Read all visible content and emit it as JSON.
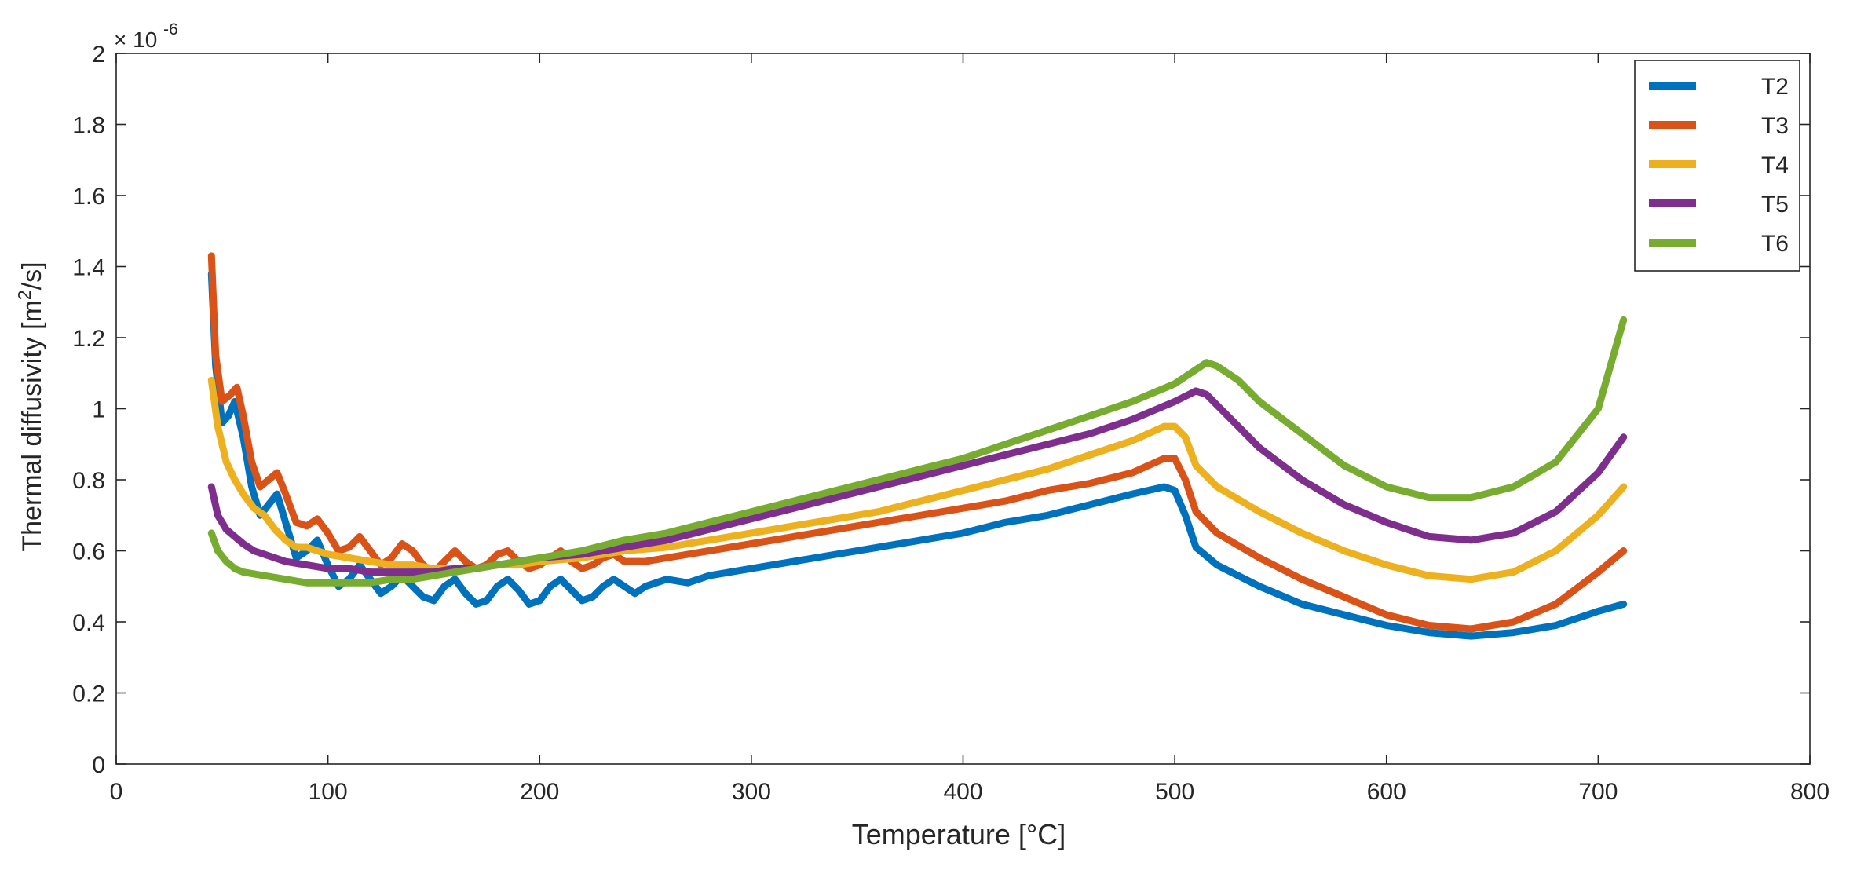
{
  "chart_data": {
    "type": "line",
    "title": "",
    "xlabel": "Temperature [°C]",
    "ylabel_main": "Thermal diffusivity [m",
    "ylabel_sup": "2",
    "ylabel_tail": "/s]",
    "y_exponent_base": "× 10",
    "y_exponent_power": "-6",
    "xlim": [
      0,
      800
    ],
    "ylim": [
      0,
      2.0
    ],
    "x_ticks": [
      0,
      100,
      200,
      300,
      400,
      500,
      600,
      700,
      800
    ],
    "x_tick_labels": [
      "0",
      "100",
      "200",
      "300",
      "400",
      "500",
      "600",
      "700",
      "800"
    ],
    "y_ticks": [
      0,
      0.2,
      0.4,
      0.6,
      0.8,
      1.0,
      1.2,
      1.4,
      1.6,
      1.8,
      2.0
    ],
    "y_tick_labels": [
      "0",
      "0.2",
      "0.4",
      "0.6",
      "0.8",
      "1",
      "1.2",
      "1.4",
      "1.6",
      "1.8",
      "2"
    ],
    "grid": false,
    "legend_position": "top-right",
    "series": [
      {
        "name": "T2",
        "color": "#0072BD",
        "points": [
          [
            45,
            1.38
          ],
          [
            47,
            1.12
          ],
          [
            50,
            0.96
          ],
          [
            53,
            0.98
          ],
          [
            56,
            1.02
          ],
          [
            60,
            0.92
          ],
          [
            64,
            0.78
          ],
          [
            68,
            0.7
          ],
          [
            72,
            0.73
          ],
          [
            76,
            0.76
          ],
          [
            80,
            0.68
          ],
          [
            85,
            0.58
          ],
          [
            90,
            0.6
          ],
          [
            95,
            0.63
          ],
          [
            100,
            0.56
          ],
          [
            105,
            0.5
          ],
          [
            110,
            0.52
          ],
          [
            115,
            0.56
          ],
          [
            120,
            0.52
          ],
          [
            125,
            0.48
          ],
          [
            130,
            0.5
          ],
          [
            135,
            0.53
          ],
          [
            140,
            0.5
          ],
          [
            145,
            0.47
          ],
          [
            150,
            0.46
          ],
          [
            155,
            0.5
          ],
          [
            160,
            0.52
          ],
          [
            165,
            0.48
          ],
          [
            170,
            0.45
          ],
          [
            175,
            0.46
          ],
          [
            180,
            0.5
          ],
          [
            185,
            0.52
          ],
          [
            190,
            0.49
          ],
          [
            195,
            0.45
          ],
          [
            200,
            0.46
          ],
          [
            205,
            0.5
          ],
          [
            210,
            0.52
          ],
          [
            215,
            0.49
          ],
          [
            220,
            0.46
          ],
          [
            225,
            0.47
          ],
          [
            230,
            0.5
          ],
          [
            235,
            0.52
          ],
          [
            240,
            0.5
          ],
          [
            245,
            0.48
          ],
          [
            250,
            0.5
          ],
          [
            260,
            0.52
          ],
          [
            270,
            0.51
          ],
          [
            280,
            0.53
          ],
          [
            300,
            0.55
          ],
          [
            320,
            0.57
          ],
          [
            340,
            0.59
          ],
          [
            360,
            0.61
          ],
          [
            380,
            0.63
          ],
          [
            400,
            0.65
          ],
          [
            420,
            0.68
          ],
          [
            440,
            0.7
          ],
          [
            460,
            0.73
          ],
          [
            480,
            0.76
          ],
          [
            495,
            0.78
          ],
          [
            500,
            0.77
          ],
          [
            505,
            0.7
          ],
          [
            510,
            0.61
          ],
          [
            520,
            0.56
          ],
          [
            540,
            0.5
          ],
          [
            560,
            0.45
          ],
          [
            580,
            0.42
          ],
          [
            600,
            0.39
          ],
          [
            620,
            0.37
          ],
          [
            640,
            0.36
          ],
          [
            660,
            0.37
          ],
          [
            680,
            0.39
          ],
          [
            700,
            0.43
          ],
          [
            712,
            0.45
          ]
        ]
      },
      {
        "name": "T3",
        "color": "#D95319",
        "points": [
          [
            45,
            1.43
          ],
          [
            47,
            1.15
          ],
          [
            50,
            1.02
          ],
          [
            54,
            1.04
          ],
          [
            57,
            1.06
          ],
          [
            60,
            0.98
          ],
          [
            64,
            0.85
          ],
          [
            68,
            0.78
          ],
          [
            72,
            0.8
          ],
          [
            76,
            0.82
          ],
          [
            80,
            0.76
          ],
          [
            85,
            0.68
          ],
          [
            90,
            0.67
          ],
          [
            95,
            0.69
          ],
          [
            100,
            0.65
          ],
          [
            105,
            0.6
          ],
          [
            110,
            0.61
          ],
          [
            115,
            0.64
          ],
          [
            120,
            0.6
          ],
          [
            125,
            0.56
          ],
          [
            130,
            0.58
          ],
          [
            135,
            0.62
          ],
          [
            140,
            0.6
          ],
          [
            145,
            0.56
          ],
          [
            150,
            0.54
          ],
          [
            155,
            0.57
          ],
          [
            160,
            0.6
          ],
          [
            165,
            0.57
          ],
          [
            170,
            0.55
          ],
          [
            175,
            0.56
          ],
          [
            180,
            0.59
          ],
          [
            185,
            0.6
          ],
          [
            190,
            0.57
          ],
          [
            195,
            0.55
          ],
          [
            200,
            0.56
          ],
          [
            205,
            0.58
          ],
          [
            210,
            0.6
          ],
          [
            215,
            0.57
          ],
          [
            220,
            0.55
          ],
          [
            225,
            0.56
          ],
          [
            230,
            0.58
          ],
          [
            235,
            0.59
          ],
          [
            240,
            0.57
          ],
          [
            250,
            0.57
          ],
          [
            260,
            0.58
          ],
          [
            280,
            0.6
          ],
          [
            300,
            0.62
          ],
          [
            320,
            0.64
          ],
          [
            340,
            0.66
          ],
          [
            360,
            0.68
          ],
          [
            380,
            0.7
          ],
          [
            400,
            0.72
          ],
          [
            420,
            0.74
          ],
          [
            440,
            0.77
          ],
          [
            460,
            0.79
          ],
          [
            480,
            0.82
          ],
          [
            495,
            0.86
          ],
          [
            500,
            0.86
          ],
          [
            505,
            0.8
          ],
          [
            510,
            0.71
          ],
          [
            520,
            0.65
          ],
          [
            540,
            0.58
          ],
          [
            560,
            0.52
          ],
          [
            580,
            0.47
          ],
          [
            600,
            0.42
          ],
          [
            620,
            0.39
          ],
          [
            640,
            0.38
          ],
          [
            660,
            0.4
          ],
          [
            680,
            0.45
          ],
          [
            700,
            0.54
          ],
          [
            712,
            0.6
          ]
        ]
      },
      {
        "name": "T4",
        "color": "#EDB120",
        "points": [
          [
            45,
            1.08
          ],
          [
            48,
            0.95
          ],
          [
            52,
            0.85
          ],
          [
            56,
            0.8
          ],
          [
            60,
            0.76
          ],
          [
            65,
            0.72
          ],
          [
            70,
            0.7
          ],
          [
            75,
            0.66
          ],
          [
            80,
            0.63
          ],
          [
            85,
            0.61
          ],
          [
            90,
            0.61
          ],
          [
            95,
            0.6
          ],
          [
            100,
            0.59
          ],
          [
            110,
            0.58
          ],
          [
            120,
            0.57
          ],
          [
            130,
            0.56
          ],
          [
            140,
            0.56
          ],
          [
            150,
            0.55
          ],
          [
            160,
            0.55
          ],
          [
            170,
            0.55
          ],
          [
            180,
            0.56
          ],
          [
            190,
            0.56
          ],
          [
            200,
            0.57
          ],
          [
            220,
            0.58
          ],
          [
            240,
            0.6
          ],
          [
            260,
            0.61
          ],
          [
            280,
            0.63
          ],
          [
            300,
            0.65
          ],
          [
            320,
            0.67
          ],
          [
            340,
            0.69
          ],
          [
            360,
            0.71
          ],
          [
            380,
            0.74
          ],
          [
            400,
            0.77
          ],
          [
            420,
            0.8
          ],
          [
            440,
            0.83
          ],
          [
            460,
            0.87
          ],
          [
            480,
            0.91
          ],
          [
            495,
            0.95
          ],
          [
            500,
            0.95
          ],
          [
            505,
            0.92
          ],
          [
            510,
            0.84
          ],
          [
            520,
            0.78
          ],
          [
            540,
            0.71
          ],
          [
            560,
            0.65
          ],
          [
            580,
            0.6
          ],
          [
            600,
            0.56
          ],
          [
            620,
            0.53
          ],
          [
            640,
            0.52
          ],
          [
            660,
            0.54
          ],
          [
            680,
            0.6
          ],
          [
            700,
            0.7
          ],
          [
            712,
            0.78
          ]
        ]
      },
      {
        "name": "T5",
        "color": "#7E2F8E",
        "points": [
          [
            45,
            0.78
          ],
          [
            48,
            0.7
          ],
          [
            52,
            0.66
          ],
          [
            56,
            0.64
          ],
          [
            60,
            0.62
          ],
          [
            65,
            0.6
          ],
          [
            70,
            0.59
          ],
          [
            80,
            0.57
          ],
          [
            90,
            0.56
          ],
          [
            100,
            0.55
          ],
          [
            110,
            0.55
          ],
          [
            120,
            0.54
          ],
          [
            130,
            0.54
          ],
          [
            140,
            0.54
          ],
          [
            150,
            0.54
          ],
          [
            160,
            0.55
          ],
          [
            170,
            0.55
          ],
          [
            180,
            0.56
          ],
          [
            190,
            0.57
          ],
          [
            200,
            0.58
          ],
          [
            220,
            0.59
          ],
          [
            240,
            0.61
          ],
          [
            260,
            0.63
          ],
          [
            280,
            0.66
          ],
          [
            300,
            0.69
          ],
          [
            320,
            0.72
          ],
          [
            340,
            0.75
          ],
          [
            360,
            0.78
          ],
          [
            380,
            0.81
          ],
          [
            400,
            0.84
          ],
          [
            420,
            0.87
          ],
          [
            440,
            0.9
          ],
          [
            460,
            0.93
          ],
          [
            480,
            0.97
          ],
          [
            500,
            1.02
          ],
          [
            510,
            1.05
          ],
          [
            515,
            1.04
          ],
          [
            520,
            1.01
          ],
          [
            530,
            0.95
          ],
          [
            540,
            0.89
          ],
          [
            560,
            0.8
          ],
          [
            580,
            0.73
          ],
          [
            600,
            0.68
          ],
          [
            620,
            0.64
          ],
          [
            640,
            0.63
          ],
          [
            660,
            0.65
          ],
          [
            680,
            0.71
          ],
          [
            700,
            0.82
          ],
          [
            712,
            0.92
          ]
        ]
      },
      {
        "name": "T6",
        "color": "#77AC30",
        "points": [
          [
            45,
            0.65
          ],
          [
            48,
            0.6
          ],
          [
            52,
            0.57
          ],
          [
            56,
            0.55
          ],
          [
            60,
            0.54
          ],
          [
            70,
            0.53
          ],
          [
            80,
            0.52
          ],
          [
            90,
            0.51
          ],
          [
            100,
            0.51
          ],
          [
            110,
            0.51
          ],
          [
            120,
            0.51
          ],
          [
            130,
            0.52
          ],
          [
            140,
            0.52
          ],
          [
            150,
            0.53
          ],
          [
            160,
            0.54
          ],
          [
            170,
            0.55
          ],
          [
            180,
            0.56
          ],
          [
            190,
            0.57
          ],
          [
            200,
            0.58
          ],
          [
            220,
            0.6
          ],
          [
            240,
            0.63
          ],
          [
            260,
            0.65
          ],
          [
            280,
            0.68
          ],
          [
            300,
            0.71
          ],
          [
            320,
            0.74
          ],
          [
            340,
            0.77
          ],
          [
            360,
            0.8
          ],
          [
            380,
            0.83
          ],
          [
            400,
            0.86
          ],
          [
            420,
            0.9
          ],
          [
            440,
            0.94
          ],
          [
            460,
            0.98
          ],
          [
            480,
            1.02
          ],
          [
            500,
            1.07
          ],
          [
            510,
            1.11
          ],
          [
            515,
            1.13
          ],
          [
            520,
            1.12
          ],
          [
            530,
            1.08
          ],
          [
            540,
            1.02
          ],
          [
            560,
            0.93
          ],
          [
            580,
            0.84
          ],
          [
            600,
            0.78
          ],
          [
            620,
            0.75
          ],
          [
            640,
            0.75
          ],
          [
            660,
            0.78
          ],
          [
            680,
            0.85
          ],
          [
            700,
            1.0
          ],
          [
            712,
            1.25
          ]
        ]
      }
    ]
  }
}
